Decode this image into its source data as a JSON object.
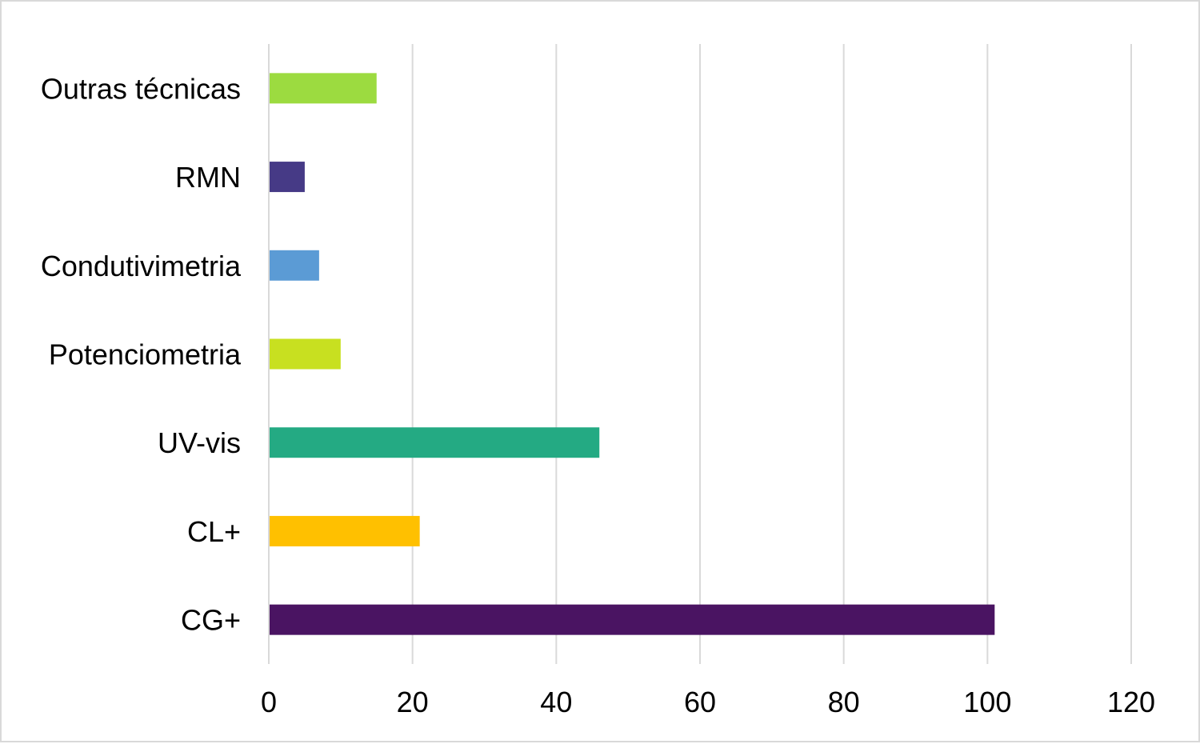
{
  "chart_data": {
    "type": "bar",
    "orientation": "horizontal",
    "title": "",
    "xlabel": "",
    "ylabel": "",
    "categories": [
      "Outras técnicas",
      "RMN",
      "Condutivimetria",
      "Potenciometria",
      "UV-vis",
      "CL+",
      "CG+"
    ],
    "values": [
      15,
      5,
      7,
      10,
      46,
      21,
      101
    ],
    "colors": [
      "#9CDB40",
      "#463A86",
      "#5B9BD5",
      "#C8E020",
      "#24AA83",
      "#FFC000",
      "#4A1462"
    ],
    "xlim": [
      0,
      120
    ],
    "xticks": [
      "0",
      "20",
      "40",
      "60",
      "80",
      "100",
      "120"
    ],
    "grid": "vertical",
    "legend": "none"
  }
}
